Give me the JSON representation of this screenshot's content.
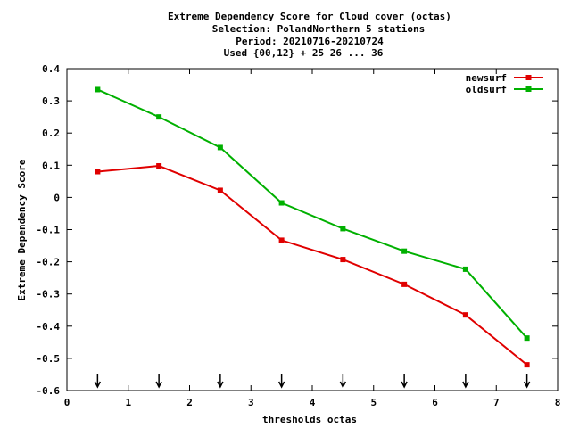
{
  "chart_data": {
    "type": "line",
    "title_lines": [
      "Extreme Dependency Score  for Cloud cover (octas)",
      "Selection: PolandNorthern      5 stations",
      "Period: 20210716-20210724",
      "Used {00,12} + 25 26 ... 36"
    ],
    "xlabel": "thresholds octas",
    "ylabel": "Extreme Dependency Score",
    "xlim": [
      0,
      8
    ],
    "ylim": [
      -0.6,
      0.4
    ],
    "x_ticks": [
      "0",
      "1",
      "2",
      "3",
      "4",
      "5",
      "6",
      "7",
      "8"
    ],
    "y_ticks": [
      "0.4",
      "0.3",
      "0.2",
      "0.1",
      "0",
      "-0.1",
      "-0.2",
      "-0.3",
      "-0.4",
      "-0.5",
      "-0.6"
    ],
    "x": [
      0.5,
      1.5,
      2.5,
      3.5,
      4.5,
      5.5,
      6.5,
      7.5
    ],
    "series": [
      {
        "name": "newsurf",
        "color": "#e00000",
        "values": [
          0.08,
          0.098,
          0.022,
          -0.133,
          -0.193,
          -0.27,
          -0.365,
          -0.52
        ]
      },
      {
        "name": "oldsurf",
        "color": "#00b000",
        "values": [
          0.335,
          0.25,
          0.155,
          -0.017,
          -0.097,
          -0.167,
          -0.223,
          -0.437
        ]
      }
    ],
    "threshold_markers_x": [
      0.5,
      1.5,
      2.5,
      3.5,
      4.5,
      5.5,
      6.5,
      7.5
    ],
    "legend_position": "top-right",
    "grid": false
  }
}
